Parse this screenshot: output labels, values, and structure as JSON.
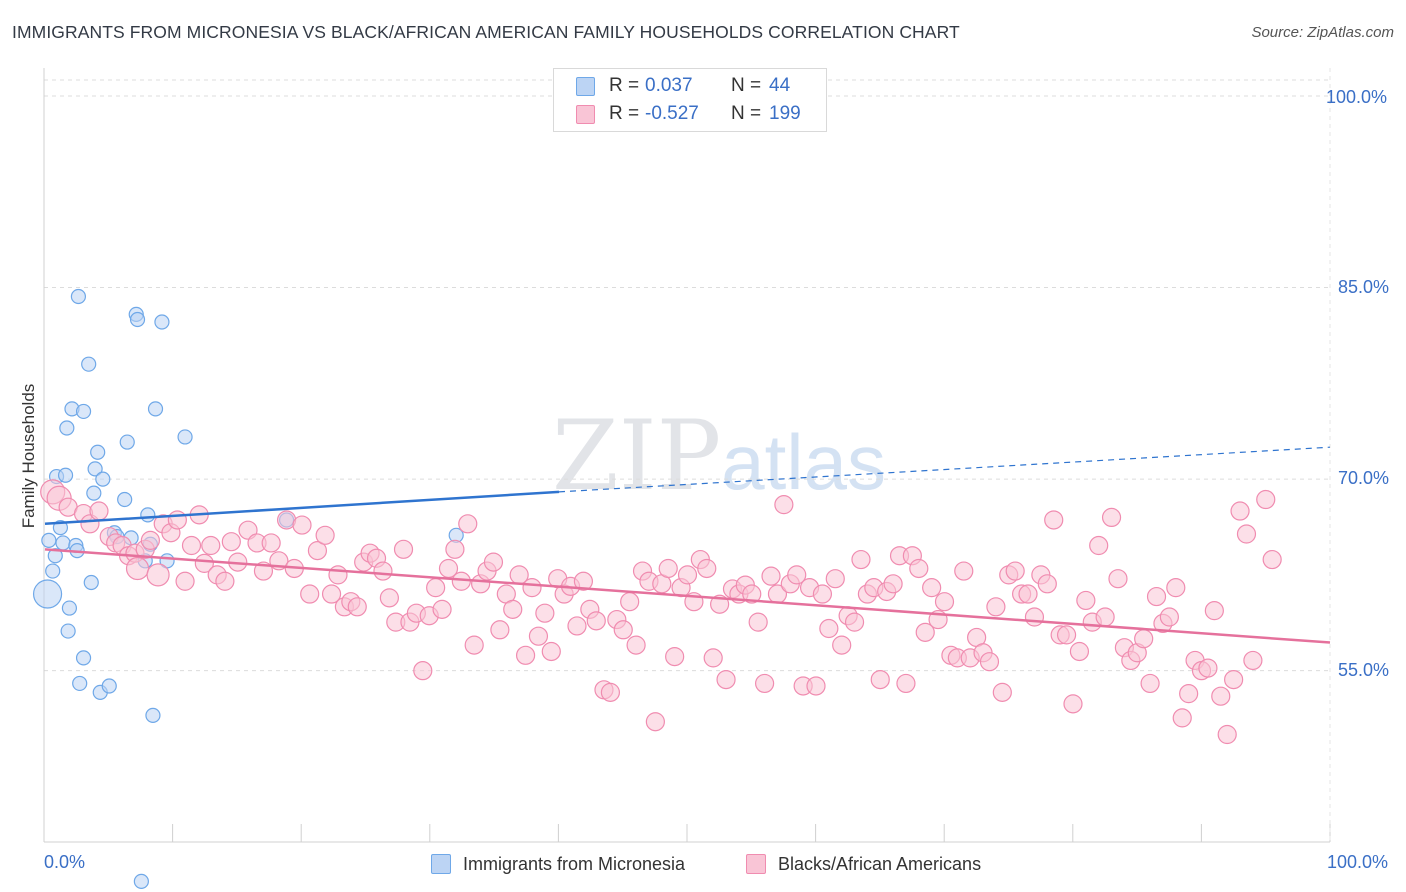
{
  "header": {
    "title": "IMMIGRANTS FROM MICRONESIA VS BLACK/AFRICAN AMERICAN FAMILY HOUSEHOLDS CORRELATION CHART",
    "source": "Source: ZipAtlas.com"
  },
  "watermark": {
    "zip": "ZIP",
    "atlas": "atlas"
  },
  "legend": {
    "rows": [
      {
        "r_label": "R =",
        "r_value": "0.037",
        "n_label": "N =",
        "n_value": "44",
        "color": "#6fa8e8",
        "fill": "#bcd4f4"
      },
      {
        "r_label": "R =",
        "r_value": "-0.527",
        "n_label": "N =",
        "n_value": "199",
        "color": "#f08cb0",
        "fill": "#f9c5d6"
      }
    ]
  },
  "chart_data": {
    "type": "scatter",
    "title": "IMMIGRANTS FROM MICRONESIA VS BLACK/AFRICAN AMERICAN FAMILY HOUSEHOLDS CORRELATION CHART",
    "xlabel": "",
    "ylabel": "Family Households",
    "xlim": [
      0,
      100
    ],
    "ylim": [
      38,
      103
    ],
    "x_tick_labels": [
      "0.0%",
      "100.0%"
    ],
    "y_ticks": [
      55,
      70,
      85,
      100
    ],
    "y_tick_labels": [
      "55.0%",
      "70.0%",
      "85.0%",
      "100.0%"
    ],
    "grid": true,
    "legend_position": "top-center",
    "series": [
      {
        "name": "Immigrants from Micronesia",
        "color": "#6fa8e8",
        "fill": "#bcd4f4",
        "trend": {
          "x": [
            0,
            40,
            100
          ],
          "y": [
            66.5,
            69.0,
            72.5
          ],
          "solid_until": 40
        },
        "points": [
          [
            0.2,
            61.0,
            14
          ],
          [
            0.3,
            65.2,
            7
          ],
          [
            0.6,
            62.8,
            7
          ],
          [
            0.8,
            64.0,
            7
          ],
          [
            0.9,
            70.2,
            7
          ],
          [
            1.2,
            66.2,
            7
          ],
          [
            1.4,
            65.0,
            7
          ],
          [
            1.6,
            70.3,
            7
          ],
          [
            1.7,
            74.0,
            7
          ],
          [
            1.8,
            58.1,
            7
          ],
          [
            1.9,
            59.9,
            7
          ],
          [
            2.1,
            75.5,
            7
          ],
          [
            2.4,
            64.8,
            7
          ],
          [
            2.5,
            64.4,
            7
          ],
          [
            2.6,
            84.3,
            7
          ],
          [
            2.7,
            54.0,
            7
          ],
          [
            3.0,
            56.0,
            7
          ],
          [
            3.0,
            75.3,
            7
          ],
          [
            3.4,
            79.0,
            7
          ],
          [
            3.6,
            61.9,
            7
          ],
          [
            3.8,
            68.9,
            7
          ],
          [
            3.9,
            70.8,
            7
          ],
          [
            4.1,
            72.1,
            7
          ],
          [
            4.3,
            53.3,
            7
          ],
          [
            4.5,
            70.0,
            7
          ],
          [
            5.0,
            53.8,
            7
          ],
          [
            5.4,
            65.8,
            7
          ],
          [
            5.6,
            65.5,
            7
          ],
          [
            6.2,
            68.4,
            7
          ],
          [
            6.4,
            72.9,
            7
          ],
          [
            6.7,
            65.4,
            7
          ],
          [
            7.1,
            82.9,
            7
          ],
          [
            7.2,
            82.5,
            7
          ],
          [
            7.5,
            38.5,
            7
          ],
          [
            7.8,
            63.6,
            7
          ],
          [
            8.0,
            67.2,
            7
          ],
          [
            8.2,
            64.9,
            7
          ],
          [
            8.4,
            51.5,
            7
          ],
          [
            8.6,
            75.5,
            7
          ],
          [
            9.1,
            82.3,
            7
          ],
          [
            9.5,
            63.6,
            7
          ],
          [
            10.9,
            73.3,
            7
          ],
          [
            18.8,
            66.8,
            7
          ],
          [
            32.0,
            65.6,
            7
          ]
        ]
      },
      {
        "name": "Blacks/African Americans",
        "color": "#f08cb0",
        "fill": "#f9c5d6",
        "trend": {
          "x": [
            0,
            100
          ],
          "y": [
            64.5,
            57.2
          ],
          "solid_until": 100
        },
        "points": [
          [
            0.6,
            69.0,
            12
          ],
          [
            1.1,
            68.5,
            12
          ],
          [
            1.8,
            67.8,
            9
          ],
          [
            3.0,
            67.3,
            9
          ],
          [
            3.5,
            66.5,
            9
          ],
          [
            4.2,
            67.5,
            9
          ],
          [
            5.0,
            65.5,
            9
          ],
          [
            5.5,
            65.0,
            9
          ],
          [
            6.0,
            64.8,
            9
          ],
          [
            6.5,
            64.0,
            9
          ],
          [
            7.0,
            64.2,
            9
          ],
          [
            7.2,
            63.0,
            11
          ],
          [
            7.8,
            64.5,
            9
          ],
          [
            8.2,
            65.2,
            9
          ],
          [
            8.8,
            62.5,
            11
          ],
          [
            9.2,
            66.5,
            9
          ],
          [
            9.8,
            65.8,
            9
          ],
          [
            10.3,
            66.8,
            9
          ],
          [
            10.9,
            62.0,
            9
          ],
          [
            11.4,
            64.8,
            9
          ],
          [
            12.0,
            67.2,
            9
          ],
          [
            12.4,
            63.4,
            9
          ],
          [
            12.9,
            64.8,
            9
          ],
          [
            13.4,
            62.5,
            9
          ],
          [
            14.0,
            62.0,
            9
          ],
          [
            14.5,
            65.1,
            9
          ],
          [
            15.0,
            63.5,
            9
          ],
          [
            15.8,
            66.0,
            9
          ],
          [
            16.5,
            65.0,
            9
          ],
          [
            17.0,
            62.8,
            9
          ],
          [
            17.6,
            65.0,
            9
          ],
          [
            18.2,
            63.6,
            9
          ],
          [
            18.8,
            66.8,
            9
          ],
          [
            19.4,
            63.0,
            9
          ],
          [
            20.0,
            66.4,
            9
          ],
          [
            20.6,
            61.0,
            9
          ],
          [
            21.2,
            64.4,
            9
          ],
          [
            21.8,
            65.6,
            9
          ],
          [
            22.3,
            61.0,
            9
          ],
          [
            22.8,
            62.5,
            9
          ],
          [
            23.3,
            60.0,
            9
          ],
          [
            23.8,
            60.4,
            9
          ],
          [
            24.3,
            60.0,
            9
          ],
          [
            24.8,
            63.5,
            9
          ],
          [
            25.3,
            64.2,
            9
          ],
          [
            25.8,
            63.8,
            9
          ],
          [
            26.3,
            62.8,
            9
          ],
          [
            26.8,
            60.7,
            9
          ],
          [
            27.3,
            58.8,
            9
          ],
          [
            27.9,
            64.5,
            9
          ],
          [
            28.4,
            58.8,
            9
          ],
          [
            28.9,
            59.5,
            9
          ],
          [
            29.4,
            55.0,
            9
          ],
          [
            29.9,
            59.3,
            9
          ],
          [
            30.4,
            61.5,
            9
          ],
          [
            30.9,
            59.8,
            9
          ],
          [
            31.4,
            63.0,
            9
          ],
          [
            31.9,
            64.5,
            9
          ],
          [
            32.4,
            62.0,
            9
          ],
          [
            32.9,
            66.5,
            9
          ],
          [
            33.4,
            57.0,
            9
          ],
          [
            33.9,
            61.8,
            9
          ],
          [
            34.4,
            62.8,
            9
          ],
          [
            34.9,
            63.5,
            9
          ],
          [
            35.4,
            58.2,
            9
          ],
          [
            35.9,
            61.0,
            9
          ],
          [
            36.4,
            59.8,
            9
          ],
          [
            36.9,
            62.5,
            9
          ],
          [
            37.4,
            56.2,
            9
          ],
          [
            37.9,
            61.5,
            9
          ],
          [
            38.4,
            57.7,
            9
          ],
          [
            38.9,
            59.5,
            9
          ],
          [
            39.4,
            56.5,
            9
          ],
          [
            39.9,
            62.2,
            9
          ],
          [
            40.4,
            61.0,
            9
          ],
          [
            40.9,
            61.6,
            9
          ],
          [
            41.4,
            58.5,
            9
          ],
          [
            41.9,
            62.0,
            9
          ],
          [
            42.4,
            59.8,
            9
          ],
          [
            42.9,
            58.9,
            9
          ],
          [
            43.5,
            53.5,
            9
          ],
          [
            44.0,
            53.3,
            9
          ],
          [
            44.5,
            59.0,
            9
          ],
          [
            45.0,
            58.2,
            9
          ],
          [
            45.5,
            60.4,
            9
          ],
          [
            46.0,
            57.0,
            9
          ],
          [
            46.5,
            62.8,
            9
          ],
          [
            47.0,
            62.0,
            9
          ],
          [
            47.5,
            51.0,
            9
          ],
          [
            48.0,
            61.8,
            9
          ],
          [
            48.5,
            63.0,
            9
          ],
          [
            49.0,
            56.1,
            9
          ],
          [
            49.5,
            61.5,
            9
          ],
          [
            50.0,
            62.5,
            9
          ],
          [
            50.5,
            60.4,
            9
          ],
          [
            51.0,
            63.7,
            9
          ],
          [
            51.5,
            63.0,
            9
          ],
          [
            52.0,
            56.0,
            9
          ],
          [
            52.5,
            60.2,
            9
          ],
          [
            53.0,
            54.3,
            9
          ],
          [
            53.5,
            61.4,
            9
          ],
          [
            54.0,
            61.0,
            9
          ],
          [
            54.5,
            61.7,
            9
          ],
          [
            55.0,
            61.0,
            9
          ],
          [
            55.5,
            58.8,
            9
          ],
          [
            56.0,
            54.0,
            9
          ],
          [
            56.5,
            62.4,
            9
          ],
          [
            57.0,
            61.0,
            9
          ],
          [
            57.5,
            68.0,
            9
          ],
          [
            58.0,
            61.8,
            9
          ],
          [
            58.5,
            62.5,
            9
          ],
          [
            59.0,
            53.8,
            9
          ],
          [
            59.5,
            61.5,
            9
          ],
          [
            60.0,
            53.8,
            9
          ],
          [
            60.5,
            61.0,
            9
          ],
          [
            61.0,
            58.3,
            9
          ],
          [
            61.5,
            62.2,
            9
          ],
          [
            62.0,
            57.0,
            9
          ],
          [
            62.5,
            59.3,
            9
          ],
          [
            63.0,
            58.8,
            9
          ],
          [
            63.5,
            63.7,
            9
          ],
          [
            64.0,
            61.0,
            9
          ],
          [
            64.5,
            61.5,
            9
          ],
          [
            65.0,
            54.3,
            9
          ],
          [
            65.5,
            61.2,
            9
          ],
          [
            66.0,
            61.8,
            9
          ],
          [
            66.5,
            64.0,
            9
          ],
          [
            67.0,
            54.0,
            9
          ],
          [
            67.5,
            64.0,
            9
          ],
          [
            68.0,
            63.0,
            9
          ],
          [
            68.5,
            58.0,
            9
          ],
          [
            69.0,
            61.5,
            9
          ],
          [
            69.5,
            59.0,
            9
          ],
          [
            70.0,
            60.4,
            9
          ],
          [
            70.5,
            56.2,
            9
          ],
          [
            71.0,
            56.0,
            9
          ],
          [
            71.5,
            62.8,
            9
          ],
          [
            72.0,
            56.0,
            9
          ],
          [
            72.5,
            57.6,
            9
          ],
          [
            73.0,
            56.4,
            9
          ],
          [
            73.5,
            55.7,
            9
          ],
          [
            74.0,
            60.0,
            9
          ],
          [
            74.5,
            53.3,
            9
          ],
          [
            75.0,
            62.5,
            9
          ],
          [
            75.5,
            62.8,
            9
          ],
          [
            76.0,
            61.0,
            9
          ],
          [
            76.5,
            61.0,
            9
          ],
          [
            77.0,
            59.2,
            9
          ],
          [
            77.5,
            62.5,
            9
          ],
          [
            78.0,
            61.8,
            9
          ],
          [
            78.5,
            66.8,
            9
          ],
          [
            79.0,
            57.8,
            9
          ],
          [
            79.5,
            57.8,
            9
          ],
          [
            80.0,
            52.4,
            9
          ],
          [
            80.5,
            56.5,
            9
          ],
          [
            81.0,
            60.5,
            9
          ],
          [
            81.5,
            58.8,
            9
          ],
          [
            82.0,
            64.8,
            9
          ],
          [
            82.5,
            59.2,
            9
          ],
          [
            83.0,
            67.0,
            9
          ],
          [
            83.5,
            62.2,
            9
          ],
          [
            84.0,
            56.8,
            9
          ],
          [
            84.5,
            55.8,
            9
          ],
          [
            85.0,
            56.4,
            9
          ],
          [
            85.5,
            57.5,
            9
          ],
          [
            86.0,
            54.0,
            9
          ],
          [
            86.5,
            60.8,
            9
          ],
          [
            87.0,
            58.7,
            9
          ],
          [
            87.5,
            59.2,
            9
          ],
          [
            88.0,
            61.5,
            9
          ],
          [
            88.5,
            51.3,
            9
          ],
          [
            89.0,
            53.2,
            9
          ],
          [
            89.5,
            55.8,
            9
          ],
          [
            90.0,
            55.0,
            9
          ],
          [
            90.5,
            55.2,
            9
          ],
          [
            91.0,
            59.7,
            9
          ],
          [
            91.5,
            53.0,
            9
          ],
          [
            92.0,
            50.0,
            9
          ],
          [
            92.5,
            54.3,
            9
          ],
          [
            93.0,
            67.5,
            9
          ],
          [
            93.5,
            65.7,
            9
          ],
          [
            94.0,
            55.8,
            9
          ],
          [
            95.0,
            68.4,
            9
          ],
          [
            95.5,
            63.7,
            9
          ]
        ]
      }
    ]
  },
  "bottom_legend": {
    "items": [
      {
        "label": "Immigrants from Micronesia",
        "color": "#6fa8e8",
        "fill": "#bcd4f4"
      },
      {
        "label": "Blacks/African Americans",
        "color": "#f08cb0",
        "fill": "#f9c5d6"
      }
    ]
  }
}
